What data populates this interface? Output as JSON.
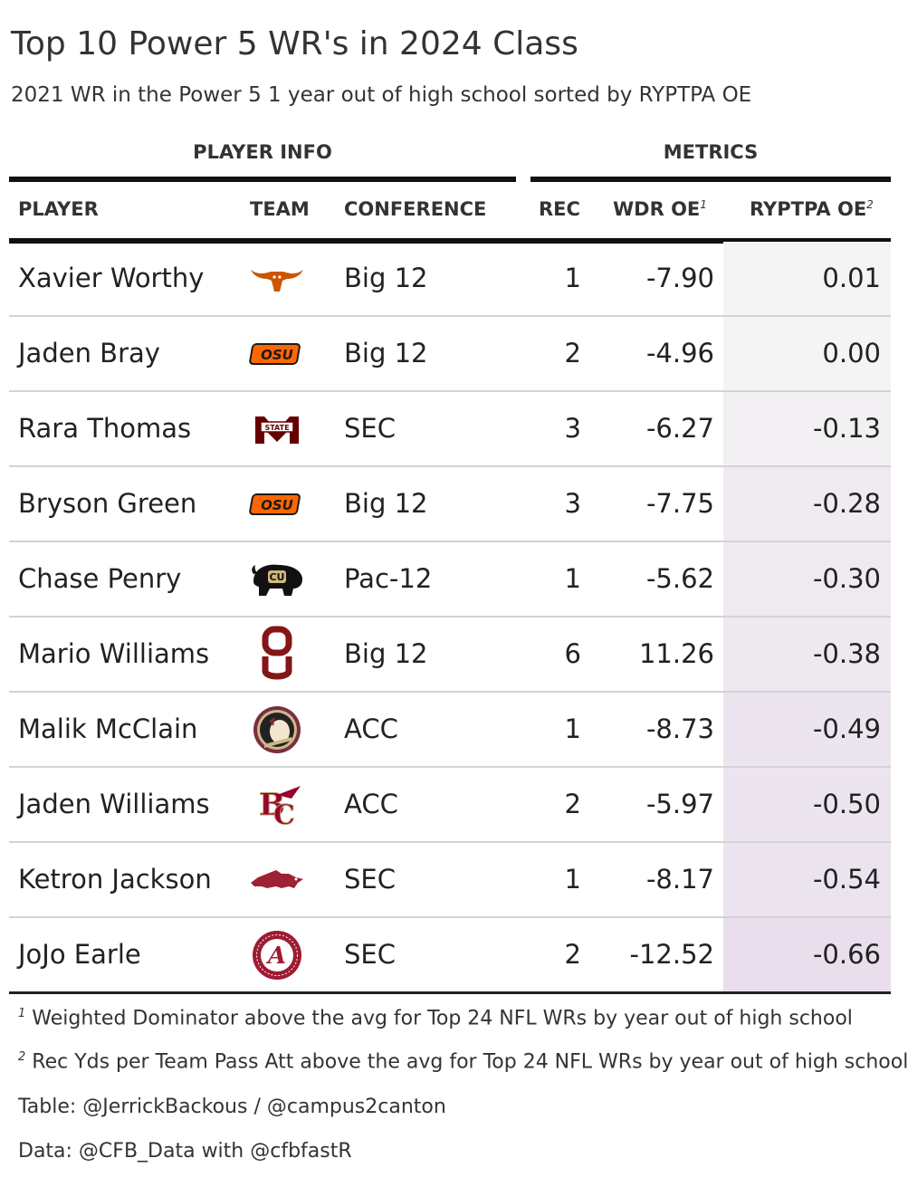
{
  "title": "Top 10 Power 5 WR's in 2024 Class",
  "subtitle": "2021 WR in the Power 5 1 year out of high school sorted by RYPTPA OE",
  "spanners": {
    "player_info": "PLAYER INFO",
    "metrics": "METRICS"
  },
  "columns": {
    "player": "PLAYER",
    "team": "TEAM",
    "conference": "CONFERENCE",
    "rec": "REC",
    "wdr_oe": "WDR OE",
    "wdr_oe_note": "1",
    "ryptpa_oe": "RYPTPA OE",
    "ryptpa_oe_note": "2"
  },
  "colors": {
    "rypt_low": "#e9dfec",
    "rypt_high": "#f4f4f4",
    "rule": "#111111",
    "row_border": "#d3d3d3"
  },
  "chart_data": {
    "type": "table",
    "title": "Top 10 Power 5 WR's in 2024 Class",
    "subtitle": "2021 WR in the Power 5 1 year out of high school sorted by RYPTPA OE",
    "columns": [
      "PLAYER",
      "TEAM",
      "CONFERENCE",
      "REC",
      "WDR OE",
      "RYPTPA OE"
    ],
    "rows": [
      {
        "player": "Xavier Worthy",
        "team_logo": "texas-longhorns-logo-icon",
        "conference": "Big 12",
        "rec": "1",
        "wdr_oe": "-7.90",
        "ryptpa_oe": "0.01"
      },
      {
        "player": "Jaden Bray",
        "team_logo": "oklahoma-state-logo-icon",
        "conference": "Big 12",
        "rec": "2",
        "wdr_oe": "-4.96",
        "ryptpa_oe": "0.00"
      },
      {
        "player": "Rara Thomas",
        "team_logo": "mississippi-state-logo-icon",
        "conference": "SEC",
        "rec": "3",
        "wdr_oe": "-6.27",
        "ryptpa_oe": "-0.13"
      },
      {
        "player": "Bryson Green",
        "team_logo": "oklahoma-state-logo-icon",
        "conference": "Big 12",
        "rec": "3",
        "wdr_oe": "-7.75",
        "ryptpa_oe": "-0.28"
      },
      {
        "player": "Chase Penry",
        "team_logo": "colorado-buffaloes-logo-icon",
        "conference": "Pac-12",
        "rec": "1",
        "wdr_oe": "-5.62",
        "ryptpa_oe": "-0.30"
      },
      {
        "player": "Mario Williams",
        "team_logo": "oklahoma-sooners-logo-icon",
        "conference": "Big 12",
        "rec": "6",
        "wdr_oe": "11.26",
        "ryptpa_oe": "-0.38"
      },
      {
        "player": "Malik McClain",
        "team_logo": "florida-state-seminoles-logo-icon",
        "conference": "ACC",
        "rec": "1",
        "wdr_oe": "-8.73",
        "ryptpa_oe": "-0.49"
      },
      {
        "player": "Jaden Williams",
        "team_logo": "boston-college-logo-icon",
        "conference": "ACC",
        "rec": "2",
        "wdr_oe": "-5.97",
        "ryptpa_oe": "-0.50"
      },
      {
        "player": "Ketron Jackson",
        "team_logo": "arkansas-razorbacks-logo-icon",
        "conference": "SEC",
        "rec": "1",
        "wdr_oe": "-8.17",
        "ryptpa_oe": "-0.54"
      },
      {
        "player": "JoJo Earle",
        "team_logo": "alabama-crimson-tide-logo-icon",
        "conference": "SEC",
        "rec": "2",
        "wdr_oe": "-12.52",
        "ryptpa_oe": "-0.66"
      }
    ]
  },
  "footnotes": [
    {
      "mark": "1",
      "text": "Weighted Dominator above the avg for Top 24 NFL WRs by year out of high school"
    },
    {
      "mark": "2",
      "text": "Rec Yds per Team Pass Att above the avg for Top 24 NFL WRs by year out of high school"
    }
  ],
  "source_notes": [
    "Table: @JerrickBackous / @campus2canton",
    "Data: @CFB_Data with @cfbfastR"
  ]
}
